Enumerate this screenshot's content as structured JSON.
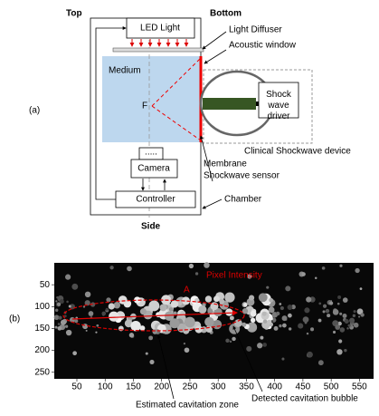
{
  "panel_a": {
    "label": "(a)",
    "top": "Top",
    "bottom": "Bottom",
    "side": "Side",
    "led_light": "LED Light",
    "light_diffuser": "Light Diffuser",
    "acoustic_window": "Acoustic window",
    "medium": "Medium",
    "focus": "F",
    "driver": "Shock wave driver",
    "device": "Clinical Shockwave device",
    "membrane": "Membrane",
    "sensor": "Shockwave sensor",
    "lens": ".....",
    "camera": "Camera",
    "controller": "Controller",
    "chamber": "Chamber"
  },
  "panel_b": {
    "label": "(b)",
    "title": "Pixel Intensity",
    "annotation": "A",
    "xlim": [
      10,
      575
    ],
    "ylim": [
      0,
      265
    ],
    "xticks": [
      50,
      100,
      150,
      200,
      250,
      300,
      350,
      400,
      450,
      500,
      550
    ],
    "yticks": [
      50,
      100,
      150,
      200,
      250
    ],
    "zone_label": "Estimated cavitation zone",
    "bubble_label": "Detected cavitation bubble"
  }
}
